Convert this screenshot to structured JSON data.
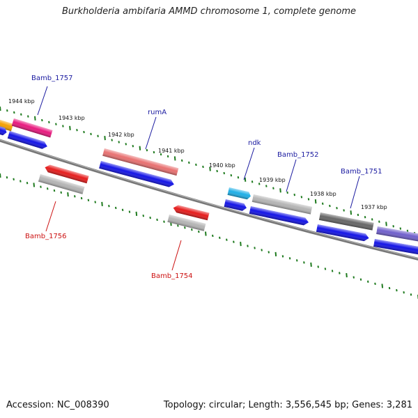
{
  "title": "Burkholderia ambifaria AMMD chromosome 1, complete genome",
  "accession_text": "Accession: NC_008390",
  "summary_text": "Topology: circular; Length: 3,556,545 bp; Genes: 3,281",
  "colors": {
    "backbone": "#808080",
    "tick": "#1e7a1e",
    "plus_label": "#1a1aa0",
    "minus_label": "#cc1111",
    "scale_text": "#111111"
  },
  "scale_labels": [
    "1944 kbp",
    "1943 kbp",
    "1942 kbp",
    "1941 kbp",
    "1940 kbp",
    "1939 kbp",
    "1938 kbp",
    "1937 kbp"
  ],
  "gene_labels": {
    "plus": [
      "Bamb_1757",
      "rumA",
      "ndk",
      "Bamb_1752",
      "Bamb_1751"
    ],
    "minus": [
      "Bamb_1756",
      "Bamb_1754"
    ]
  },
  "feature_colors": {
    "orange": "#f5a000",
    "magenta": "#e8197e",
    "red": "#e61c1c",
    "salmon": "#e87070",
    "lightgray": "#b4b4b4",
    "darkgray": "#666666",
    "cyan": "#1eaee6",
    "purple": "#7060cc",
    "blue": "#1414e6"
  }
}
